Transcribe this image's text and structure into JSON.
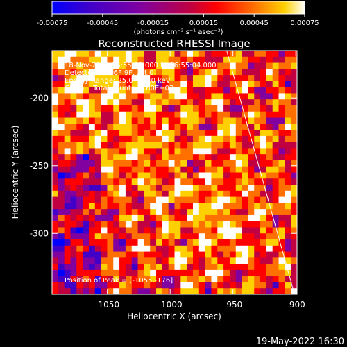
{
  "chart_data": {
    "type": "heatmap",
    "title": "Reconstructed RHESSI Image",
    "xlabel": "Heliocentric X (arcsec)",
    "ylabel": "Heliocentric Y (arcsec)",
    "x_ticks": [
      "-1050",
      "-1000",
      "-950",
      "-900"
    ],
    "x_tick_values": [
      -1050,
      -1000,
      -950,
      -900
    ],
    "y_ticks": [
      "-200",
      "-250",
      "-300"
    ],
    "y_tick_values": [
      -200,
      -250,
      -300
    ],
    "xlim": [
      -1094,
      -899
    ],
    "ylim": [
      -345,
      -165
    ],
    "colorbar": {
      "ticks": [
        "-0.00075",
        "-0.00045",
        "-0.00015",
        "0.00015",
        "0.00045",
        "0.00075"
      ],
      "range": [
        -0.00075,
        0.00075
      ],
      "units_label": "(photons cm⁻² s⁻¹ asec⁻²)",
      "colors": [
        "#0000ff",
        "#4000c8",
        "#8000a0",
        "#c00040",
        "#ff0000",
        "#ff7000",
        "#ffd000",
        "#ffffff"
      ]
    },
    "annotations": [
      "18-Nov-2014 16:55:12.000 to 16:55:04.000",
      "Detectors: 3F 6F 9F, Att 0",
      "Energy Range: 25.0 - 50.0 keV",
      "Clean    Total counts: 1.60E+03",
      "Position of Peak = [-1055,-176]"
    ],
    "peak": {
      "x": -1055,
      "y": -176
    },
    "limb_line": [
      {
        "x": -955,
        "y": -165
      },
      {
        "x": -901,
        "y": -345
      }
    ]
  },
  "footer_date": "19-May-2022 16:30"
}
